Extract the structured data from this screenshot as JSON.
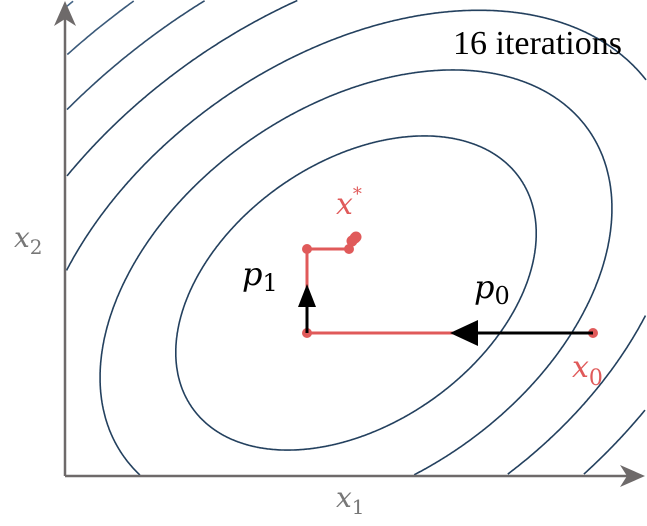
{
  "annotation": "16 iterations",
  "axes": {
    "x_label": {
      "base": "x",
      "sub": "1"
    },
    "y_label": {
      "base": "x",
      "sub": "2"
    }
  },
  "labels": {
    "start": {
      "base": "x",
      "sub": "0"
    },
    "optimum": {
      "base": "x",
      "sup": "*"
    },
    "step0": {
      "base": "p",
      "sub": "0"
    },
    "step1": {
      "base": "p",
      "sub": "1"
    }
  },
  "colors": {
    "path": "#e05a5a",
    "contour_inner": "#23405e",
    "contour_outer": "#8fb6dc",
    "axis": "#6e6a6a",
    "arrow": "#000000"
  }
}
